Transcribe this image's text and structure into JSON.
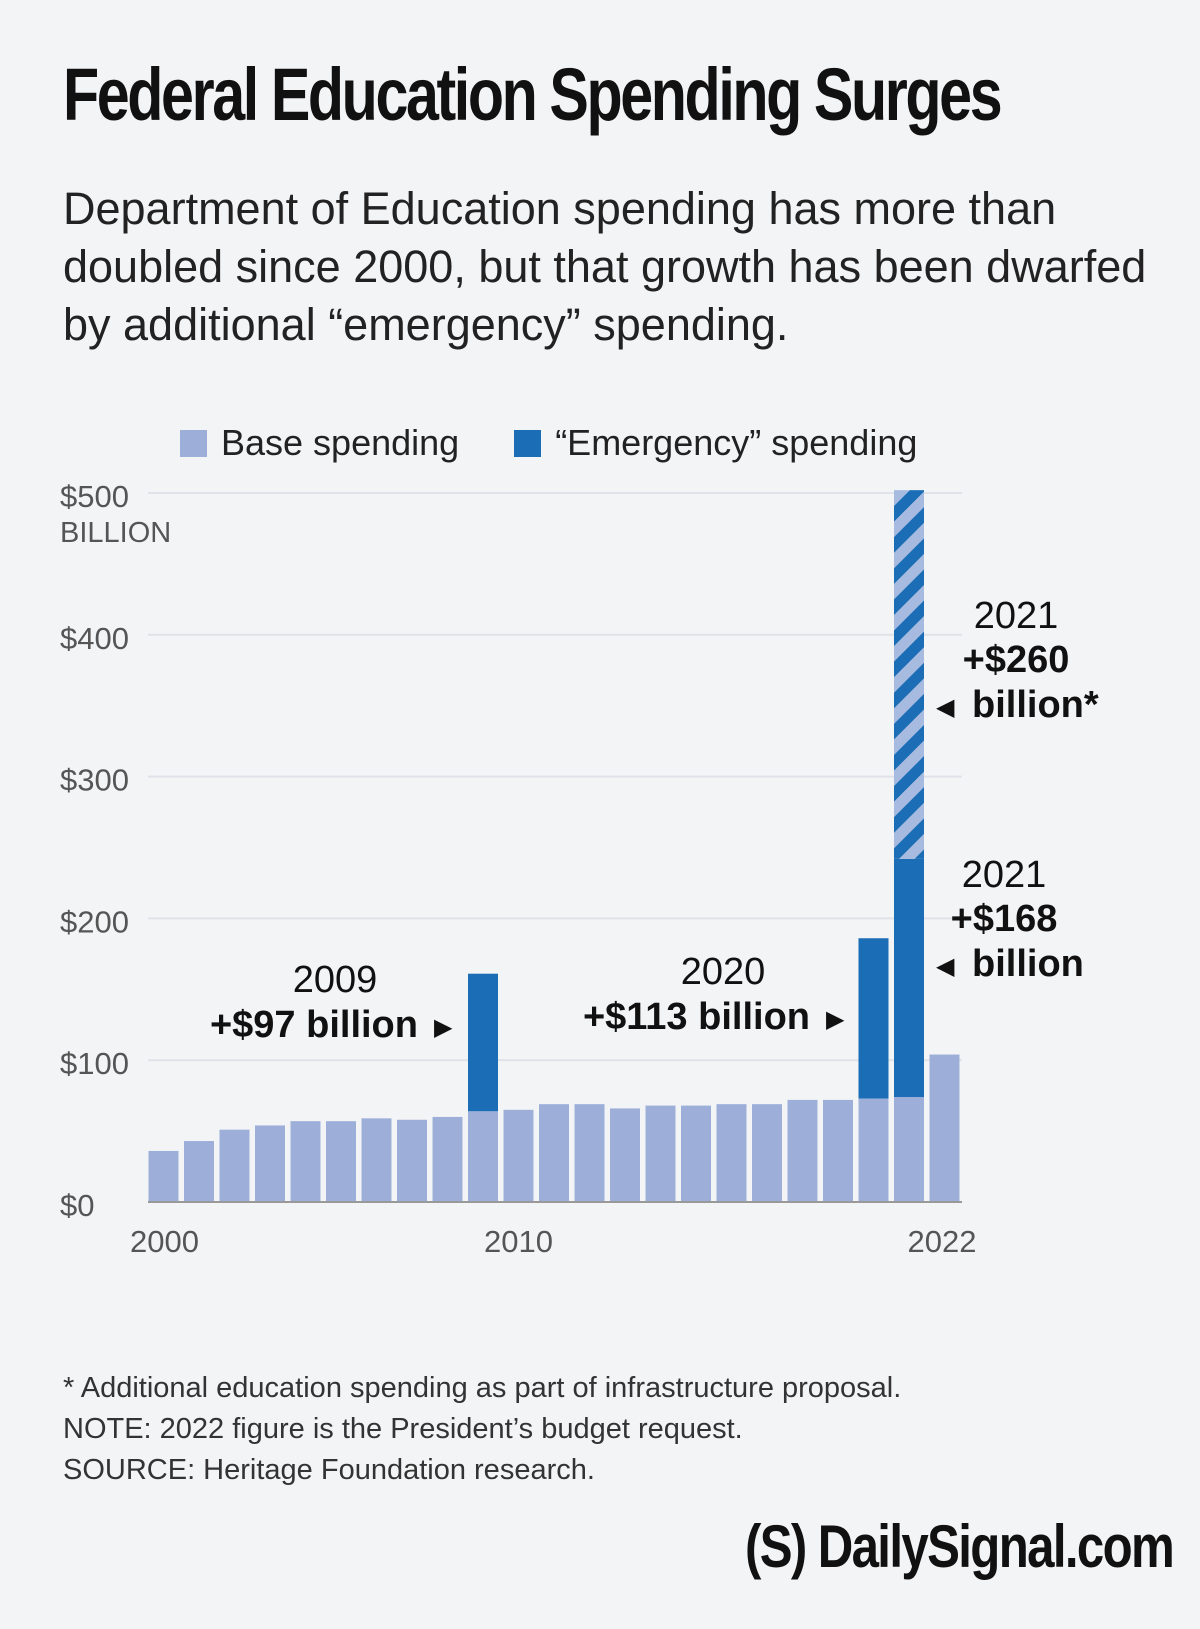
{
  "title": "Federal Education Spending Surges",
  "subtitle": "Department of Education spending has more than doubled since 2000, but that growth has been dwarfed by additional “emergency” spending.",
  "legend": {
    "base": "Base spending",
    "emergency": "“Emergency” spending"
  },
  "colors": {
    "base": "#9dafd9",
    "emergency": "#1b6db5",
    "background": "#f3f4f6",
    "grid": "#dfe2e8"
  },
  "chart_data": {
    "type": "bar",
    "stacked": true,
    "x": [
      2000,
      2001,
      2002,
      2003,
      2004,
      2005,
      2006,
      2007,
      2008,
      2009,
      2010,
      2011,
      2012,
      2013,
      2014,
      2015,
      2016,
      2017,
      2018,
      2019,
      2020,
      2021,
      2022
    ],
    "series": [
      {
        "name": "Base spending",
        "values": [
          36,
          43,
          51,
          54,
          57,
          57,
          59,
          58,
          60,
          64,
          65,
          69,
          69,
          66,
          68,
          68,
          69,
          69,
          72,
          72,
          73,
          74,
          104
        ]
      },
      {
        "name": "“Emergency” spending",
        "values": [
          0,
          0,
          0,
          0,
          0,
          0,
          0,
          0,
          0,
          97,
          0,
          0,
          0,
          0,
          0,
          0,
          0,
          0,
          0,
          0,
          113,
          168,
          0
        ]
      },
      {
        "name": "“Emergency” spending (infrastructure proposal, hatched)",
        "values": [
          0,
          0,
          0,
          0,
          0,
          0,
          0,
          0,
          0,
          0,
          0,
          0,
          0,
          0,
          0,
          0,
          0,
          0,
          0,
          0,
          0,
          260,
          0
        ]
      }
    ],
    "ylim": [
      0,
      500
    ],
    "yticks": [
      "$0",
      "$100",
      "$200",
      "$300",
      "$400",
      "$500"
    ],
    "ytick_values": [
      0,
      100,
      200,
      300,
      400,
      500
    ],
    "yunit": "BILLION",
    "xtick_labels": [
      "2000",
      "2010",
      "2022"
    ],
    "xtick_values": [
      2000,
      2010,
      2022
    ],
    "annotations": [
      {
        "year_label": "2009",
        "amount": "+$97 billion",
        "arrow": "▶",
        "target_year": 2009
      },
      {
        "year_label": "2020",
        "amount": "+$113 billion",
        "arrow": "▶",
        "target_year": 2020
      },
      {
        "year_label": "2021",
        "amount": "+$168",
        "unit": "billion",
        "arrow": "◀",
        "target_year": 2021
      },
      {
        "year_label": "2021",
        "amount": "+$260",
        "unit": "billion*",
        "arrow": "◀",
        "target_year": 2021
      }
    ]
  },
  "footnotes": [
    "* Additional education spending as part of infrastructure proposal.",
    "NOTE: 2022 figure is the President’s budget request.",
    "SOURCE: Heritage Foundation research."
  ],
  "logo": "(S) DailySignal.com"
}
